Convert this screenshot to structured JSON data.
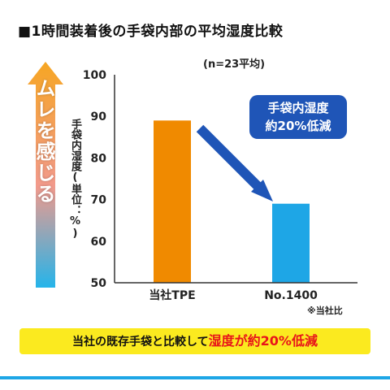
{
  "title": "■1時間装着後の手袋内部の平均湿度比較",
  "side_arrow_text": "ムレを感じる",
  "note_top": "(n=23平均)",
  "callout": {
    "line1": "手袋内湿度",
    "line2": "約20%低減"
  },
  "footnote": "※当社比",
  "banner": {
    "normal": "当社の既存手袋と比較して",
    "highlight": "湿度が約20%低減"
  },
  "colors": {
    "bar_tpe": "#f08a00",
    "bar_1400": "#1ea6e6",
    "callout": "#1f55b7",
    "banner": "#fbea1f",
    "banner_highlight": "#e8141a",
    "arrow_top": "#f6a623",
    "arrow_bottom": "#25b4ea"
  },
  "chart_data": {
    "type": "bar",
    "categories": [
      "当社TPE",
      "No.1400"
    ],
    "values": [
      89,
      69
    ],
    "ylabel": "手袋内湿度(単位：%)",
    "yticks": [
      50,
      60,
      70,
      80,
      90,
      100
    ],
    "ylim": [
      50,
      100
    ],
    "bar_colors": [
      "#f08a00",
      "#1ea6e6"
    ],
    "grid": false
  }
}
